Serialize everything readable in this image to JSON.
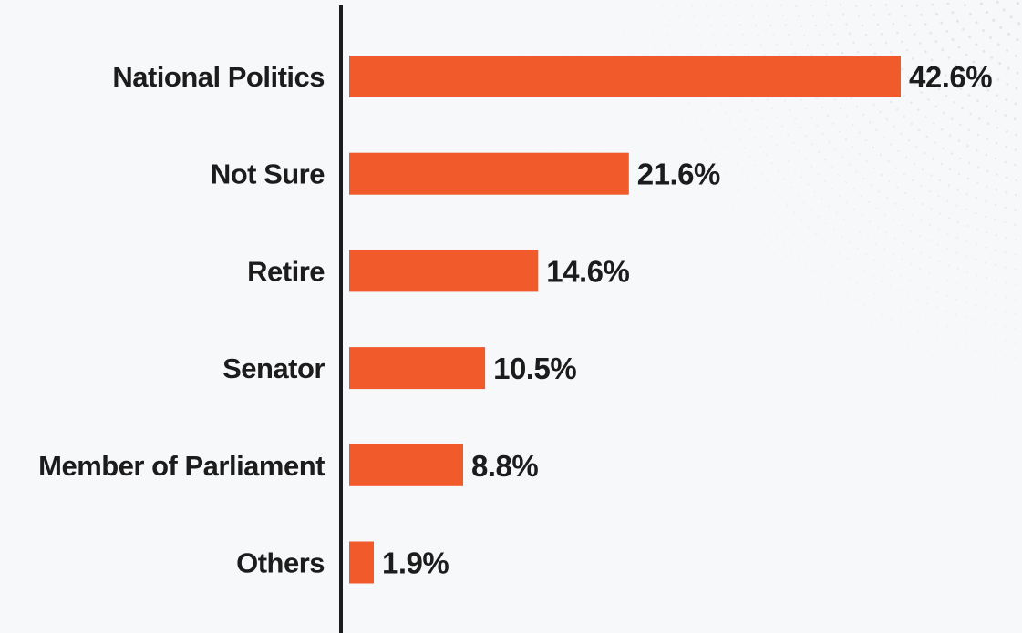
{
  "chart_data": {
    "type": "bar",
    "orientation": "horizontal",
    "categories": [
      "National Politics",
      "Not Sure",
      "Retire",
      "Senator",
      "Member of Parliament",
      "Others"
    ],
    "values": [
      42.6,
      21.6,
      14.6,
      10.5,
      8.8,
      1.9
    ],
    "value_labels": [
      "42.6%",
      "21.6%",
      "14.6%",
      "10.5%",
      "8.8%",
      "1.9%"
    ],
    "unit": "%",
    "xlim": [
      0,
      42.6
    ],
    "grid": false,
    "legend": "none",
    "colors": {
      "bar": "#f15a2b",
      "axis": "#1c1c1c",
      "text": "#1c1c1c",
      "background": "#f7f8fa",
      "dots": "#c9ced6"
    }
  }
}
